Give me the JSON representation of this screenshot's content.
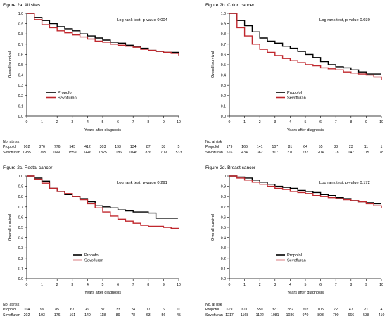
{
  "colors": {
    "propofol": "#000000",
    "sevofluran": "#c0272d",
    "axis": "#000000"
  },
  "chart_data": [
    {
      "type": "line",
      "title": "Figure 2a. All sites",
      "xlabel": "Years after diagnosis",
      "ylabel": "Overall survival",
      "xlim": [
        0,
        10
      ],
      "ylim": [
        0,
        1.0
      ],
      "xticks": [
        "0",
        "1",
        "2",
        "3",
        "4",
        "5",
        "6",
        "7",
        "8",
        "9",
        "10"
      ],
      "yticks": [
        "0.0",
        "0.1",
        "0.2",
        "0.3",
        "0.4",
        "0.5",
        "0.6",
        "0.7",
        "0.8",
        "0.9",
        "1.0"
      ],
      "annotation": "Log rank test, p-value 0.004",
      "legend_position": "lower-left",
      "series": [
        {
          "name": "Propofol",
          "color_key": "propofol",
          "x": [
            0,
            0.5,
            1,
            1.5,
            2,
            2.5,
            3,
            3.5,
            4,
            4.5,
            5,
            5.5,
            6,
            6.5,
            7,
            7.5,
            8,
            8.5,
            9,
            9.5,
            10
          ],
          "y": [
            1.0,
            0.96,
            0.93,
            0.9,
            0.87,
            0.85,
            0.83,
            0.8,
            0.78,
            0.76,
            0.74,
            0.72,
            0.71,
            0.69,
            0.68,
            0.66,
            0.64,
            0.63,
            0.62,
            0.62,
            0.62
          ]
        },
        {
          "name": "Sevofluran",
          "color_key": "sevofluran",
          "x": [
            0,
            0.5,
            1,
            1.5,
            2,
            2.5,
            3,
            3.5,
            4,
            4.5,
            5,
            5.5,
            6,
            6.5,
            7,
            7.5,
            8,
            8.5,
            9,
            9.5,
            10
          ],
          "y": [
            1.0,
            0.94,
            0.89,
            0.86,
            0.83,
            0.81,
            0.79,
            0.77,
            0.75,
            0.73,
            0.72,
            0.7,
            0.69,
            0.68,
            0.67,
            0.65,
            0.64,
            0.63,
            0.62,
            0.61,
            0.59
          ]
        }
      ],
      "risk_table": {
        "header": "No. at risk",
        "rows": [
          {
            "label": "Propofol",
            "values": [
              "902",
              "876",
              "776",
              "545",
              "412",
              "303",
              "193",
              "134",
              "87",
              "38",
              "5"
            ]
          },
          {
            "label": "Sevofluran",
            "values": [
              "1935",
              "1795",
              "1660",
              "1559",
              "1446",
              "1325",
              "1186",
              "1046",
              "876",
              "709",
              "533"
            ]
          }
        ]
      }
    },
    {
      "type": "line",
      "title": "Figure 2b. Colon cancer",
      "xlabel": "Years after diagnosis",
      "ylabel": "Overall survival",
      "xlim": [
        0,
        10
      ],
      "ylim": [
        0,
        1.0
      ],
      "xticks": [
        "0",
        "1",
        "2",
        "3",
        "4",
        "5",
        "6",
        "7",
        "8",
        "9",
        "10"
      ],
      "yticks": [
        "0.0",
        "0.1",
        "0.2",
        "0.3",
        "0.4",
        "0.5",
        "0.6",
        "0.7",
        "0.8",
        "0.9",
        "1.0"
      ],
      "annotation": "Log rank test, p-value 0.030",
      "legend_position": "lower-center",
      "series": [
        {
          "name": "Propofol",
          "color_key": "propofol",
          "x": [
            0,
            0.5,
            1,
            1.5,
            2,
            2.5,
            3,
            3.5,
            4,
            4.5,
            5,
            5.5,
            6,
            6.5,
            7,
            7.5,
            8,
            8.5,
            9,
            9.5,
            10
          ],
          "y": [
            1.0,
            0.93,
            0.88,
            0.82,
            0.76,
            0.73,
            0.71,
            0.68,
            0.66,
            0.63,
            0.6,
            0.57,
            0.53,
            0.5,
            0.48,
            0.47,
            0.45,
            0.43,
            0.41,
            0.41,
            0.41
          ]
        },
        {
          "name": "Sevofluran",
          "color_key": "sevofluran",
          "x": [
            0,
            0.5,
            1,
            1.5,
            2,
            2.5,
            3,
            3.5,
            4,
            4.5,
            5,
            5.5,
            6,
            6.5,
            7,
            7.5,
            8,
            8.5,
            9,
            9.5,
            10
          ],
          "y": [
            1.0,
            0.86,
            0.78,
            0.7,
            0.65,
            0.62,
            0.59,
            0.56,
            0.54,
            0.52,
            0.5,
            0.49,
            0.47,
            0.46,
            0.45,
            0.43,
            0.42,
            0.41,
            0.4,
            0.38,
            0.35
          ]
        }
      ],
      "risk_table": {
        "header": "No. at risk",
        "rows": [
          {
            "label": "Propofol",
            "values": [
              "179",
              "166",
              "141",
              "107",
              "81",
              "64",
              "55",
              "38",
              "23",
              "11",
              "1"
            ]
          },
          {
            "label": "Sevofluran",
            "values": [
              "516",
              "434",
              "362",
              "317",
              "270",
              "237",
              "204",
              "178",
              "147",
              "115",
              "78"
            ]
          }
        ]
      }
    },
    {
      "type": "line",
      "title": "Figure 2c. Rectal cancer",
      "xlabel": "Years after diagnosis",
      "ylabel": "Overall survival",
      "xlim": [
        0,
        10
      ],
      "ylim": [
        0,
        1.0
      ],
      "xticks": [
        "0",
        "1",
        "2",
        "3",
        "4",
        "5",
        "6",
        "7",
        "8",
        "9",
        "10"
      ],
      "yticks": [
        "0.0",
        "0.1",
        "0.2",
        "0.3",
        "0.4",
        "0.5",
        "0.6",
        "0.7",
        "0.8",
        "0.9",
        "1.0"
      ],
      "annotation": "Log rank test, p-value 0.291",
      "legend_position": "lower-center",
      "series": [
        {
          "name": "Propofol",
          "color_key": "propofol",
          "x": [
            0,
            0.5,
            1,
            1.5,
            2,
            2.5,
            3,
            3.5,
            4,
            4.5,
            5,
            5.5,
            6,
            6.5,
            7,
            7.5,
            8,
            8.5,
            9,
            9.5
          ],
          "y": [
            1.0,
            0.98,
            0.95,
            0.88,
            0.85,
            0.82,
            0.8,
            0.78,
            0.75,
            0.71,
            0.7,
            0.69,
            0.67,
            0.66,
            0.65,
            0.65,
            0.64,
            0.59,
            0.59,
            0.59
          ]
        },
        {
          "name": "Sevofluran",
          "color_key": "sevofluran",
          "x": [
            0,
            0.5,
            1,
            1.5,
            2,
            2.5,
            3,
            3.5,
            4,
            4.5,
            5,
            5.5,
            6,
            6.5,
            7,
            7.5,
            8,
            8.5,
            9,
            9.5,
            10
          ],
          "y": [
            1.0,
            0.97,
            0.93,
            0.88,
            0.85,
            0.83,
            0.8,
            0.77,
            0.73,
            0.69,
            0.65,
            0.61,
            0.58,
            0.56,
            0.54,
            0.52,
            0.51,
            0.51,
            0.5,
            0.49,
            0.49
          ]
        }
      ],
      "risk_table": {
        "header": "No. at risk",
        "rows": [
          {
            "label": "Propofol",
            "values": [
              "104",
              "99",
              "85",
              "67",
              "49",
              "37",
              "33",
              "24",
              "17",
              "6",
              "0"
            ]
          },
          {
            "label": "Sevofluran",
            "values": [
              "202",
              "193",
              "176",
              "161",
              "140",
              "118",
              "89",
              "78",
              "63",
              "56",
              "45"
            ]
          }
        ]
      }
    },
    {
      "type": "line",
      "title": "Figure 2d. Breast cancer",
      "xlabel": "Years after diagnosis",
      "ylabel": "Overall survival",
      "xlim": [
        0,
        10
      ],
      "ylim": [
        0,
        1.0
      ],
      "xticks": [
        "0",
        "1",
        "2",
        "3",
        "4",
        "5",
        "6",
        "7",
        "8",
        "9",
        "10"
      ],
      "yticks": [
        "0.0",
        "0.1",
        "0.2",
        "0.3",
        "0.4",
        "0.5",
        "0.6",
        "0.7",
        "0.8",
        "0.9",
        "1.0"
      ],
      "annotation": "Log rank test, p-value 0.172",
      "legend_position": "lower-center",
      "series": [
        {
          "name": "Propofol",
          "color_key": "propofol",
          "x": [
            0,
            0.5,
            1,
            1.5,
            2,
            2.5,
            3,
            3.5,
            4,
            4.5,
            5,
            5.5,
            6,
            6.5,
            7,
            7.5,
            8,
            8.5,
            9,
            9.5,
            10
          ],
          "y": [
            1.0,
            0.99,
            0.98,
            0.96,
            0.94,
            0.92,
            0.9,
            0.89,
            0.88,
            0.86,
            0.85,
            0.84,
            0.82,
            0.81,
            0.79,
            0.78,
            0.76,
            0.75,
            0.74,
            0.73,
            0.73
          ]
        },
        {
          "name": "Sevofluran",
          "color_key": "sevofluran",
          "x": [
            0,
            0.5,
            1,
            1.5,
            2,
            2.5,
            3,
            3.5,
            4,
            4.5,
            5,
            5.5,
            6,
            6.5,
            7,
            7.5,
            8,
            8.5,
            9,
            9.5,
            10
          ],
          "y": [
            1.0,
            0.98,
            0.96,
            0.94,
            0.92,
            0.9,
            0.88,
            0.87,
            0.85,
            0.84,
            0.83,
            0.81,
            0.8,
            0.79,
            0.78,
            0.77,
            0.76,
            0.75,
            0.73,
            0.71,
            0.69
          ]
        }
      ],
      "risk_table": {
        "header": "No. at risk",
        "rows": [
          {
            "label": "Propofol",
            "values": [
              "619",
              "611",
              "550",
              "371",
              "282",
              "202",
              "105",
              "72",
              "47",
              "21",
              "4"
            ]
          },
          {
            "label": "Sevofluran",
            "values": [
              "1217",
              "1168",
              "1122",
              "1081",
              "1036",
              "970",
              "893",
              "790",
              "666",
              "538",
              "410"
            ]
          }
        ]
      }
    }
  ]
}
